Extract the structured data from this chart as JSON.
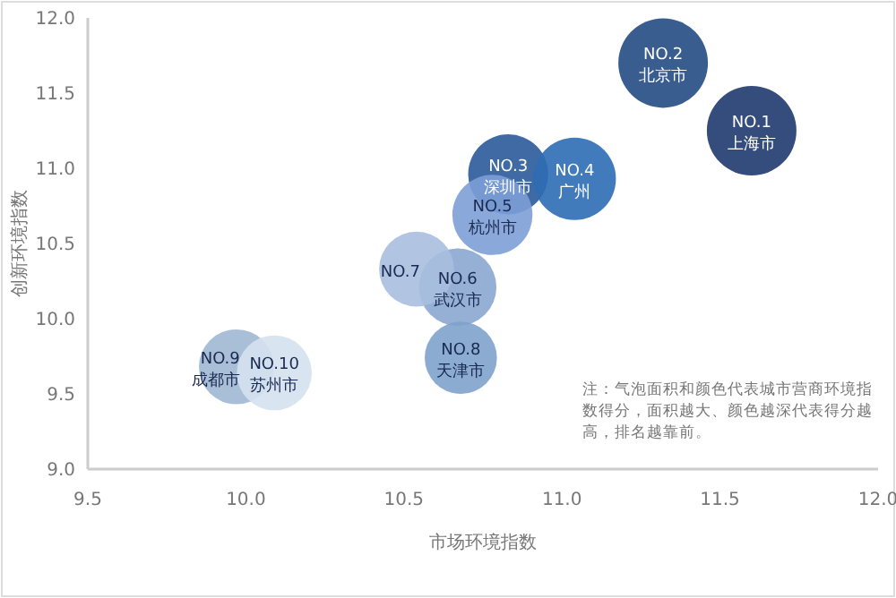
{
  "chart_data": {
    "type": "bubble",
    "xlabel": "市场环境指数",
    "ylabel": "创新环境指数",
    "x": [
      11.6,
      11.32,
      10.83,
      11.04,
      10.78,
      10.67,
      10.54,
      10.68,
      9.97,
      10.09
    ],
    "values": [
      11.25,
      11.7,
      10.96,
      10.93,
      10.69,
      10.21,
      10.33,
      9.74,
      9.68,
      9.64
    ],
    "sizes": [
      1,
      1,
      0.8,
      0.85,
      0.8,
      0.75,
      0.7,
      0.65,
      0.7,
      0.7
    ],
    "colors": [
      "#1f3a6e",
      "#234b82",
      "#2b5a9a",
      "#2e6db4",
      "#7d9fd6",
      "#8aa6d0",
      "#a8bfdf",
      "#7ea2cc",
      "#9fb8d3",
      "#d5e1ef"
    ],
    "xlim": [
      9.5,
      12
    ],
    "ylim": [
      9,
      12
    ],
    "xticks": [
      {
        "value": 9.5,
        "label": "9.5"
      },
      {
        "value": 10,
        "label": "10.0"
      },
      {
        "value": 10.5,
        "label": "10.5"
      },
      {
        "value": 11,
        "label": "11.0"
      },
      {
        "value": 11.5,
        "label": "11.5"
      },
      {
        "value": 12,
        "label": "12.0"
      }
    ],
    "yticks": [
      {
        "value": 9,
        "label": "9.0"
      },
      {
        "value": 9.5,
        "label": "9.5"
      },
      {
        "value": 10,
        "label": "10.0"
      },
      {
        "value": 10.5,
        "label": "10.5"
      },
      {
        "value": 11,
        "label": "11.0"
      },
      {
        "value": 11.5,
        "label": "11.5"
      },
      {
        "value": 12,
        "label": "12.0"
      }
    ],
    "grid": false,
    "annotations": [
      {
        "text": "NO.1\n上海市",
        "x": 11.6,
        "y": 11.25
      },
      {
        "text": "NO.2\n北京市",
        "x": 11.32,
        "y": 11.7
      },
      {
        "text": "NO.3\n深圳市",
        "x": 10.83,
        "y": 10.96
      },
      {
        "text": "NO.4\n广州",
        "x": 11.04,
        "y": 10.93
      },
      {
        "text": "NO.5\n杭州市",
        "x": 10.78,
        "y": 10.69
      },
      {
        "text": "NO.6\n武汉市",
        "x": 10.67,
        "y": 10.21
      },
      {
        "text": "NO.7",
        "x": 10.54,
        "y": 10.33
      },
      {
        "text": "NO.8\n天津市",
        "x": 10.68,
        "y": 9.74
      },
      {
        "text": "NO.9\n成都市",
        "x": 9.97,
        "y": 9.68
      },
      {
        "text": "NO.10\n苏州市",
        "x": 10.09,
        "y": 9.64
      },
      "注：气泡面积和颜色代表城市营商环境指数得分，面积越大、颜色越深代表得分越高，排名越靠前。"
    ]
  }
}
